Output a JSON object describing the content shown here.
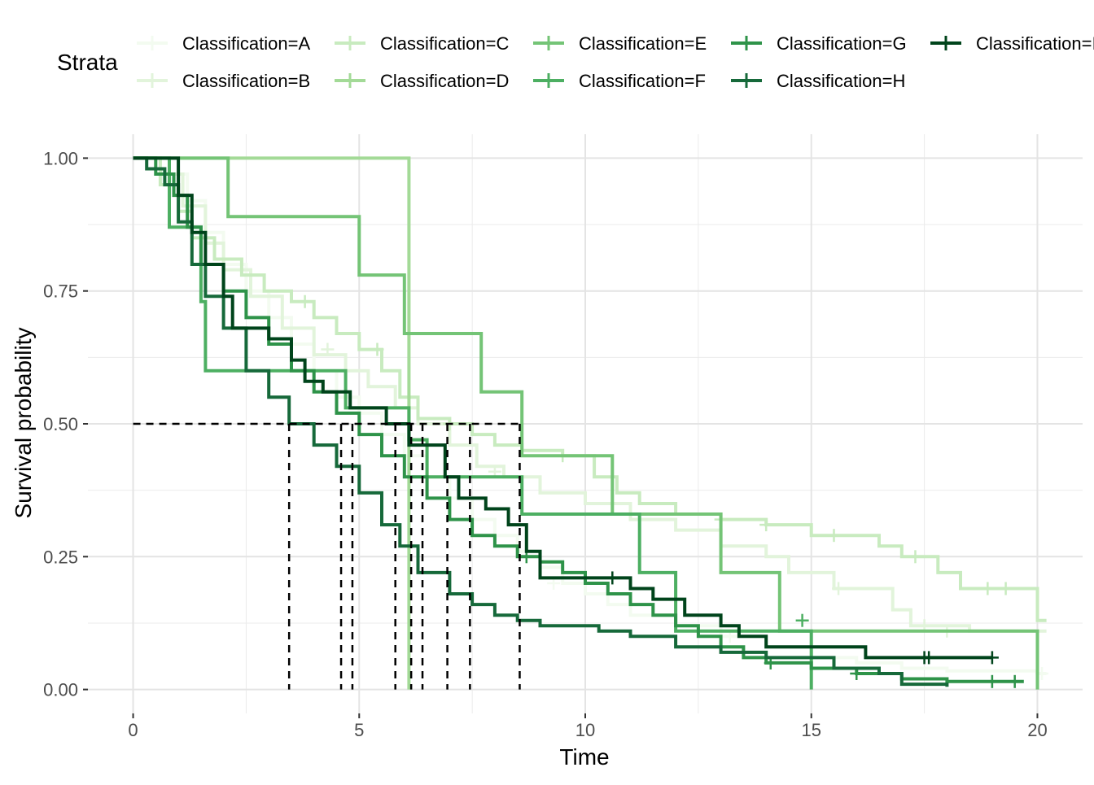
{
  "chart_data": {
    "type": "line",
    "subtype": "kaplan-meier survival curves",
    "xlabel": "Time",
    "ylabel": "Survival probability",
    "xlim": [
      -1,
      21
    ],
    "ylim": [
      -0.045,
      1.045
    ],
    "x_ticks": [
      0,
      5,
      10,
      15,
      20
    ],
    "x_tick_labels": [
      "0",
      "5",
      "10",
      "15",
      "20"
    ],
    "y_ticks": [
      0,
      0.25,
      0.5,
      0.75,
      1
    ],
    "y_tick_labels": [
      "0.00",
      "0.25",
      "0.50",
      "0.75",
      "1.00"
    ],
    "grid": true,
    "legend": {
      "title": "Strata",
      "position": "top"
    },
    "median_line": {
      "y": 0.5,
      "medians": [
        3.45,
        4.6,
        4.85,
        5.8,
        6.15,
        6.4,
        6.95,
        7.45,
        8.55
      ],
      "style": "dashed",
      "color": "#000000"
    },
    "series": [
      {
        "name": "Classification=A",
        "color": "#F3FBF0",
        "steps": [
          [
            0,
            1
          ],
          [
            0.5,
            0.97
          ],
          [
            1.2,
            0.92
          ],
          [
            1.6,
            0.86
          ],
          [
            2.0,
            0.8
          ],
          [
            2.5,
            0.75
          ],
          [
            3.0,
            0.7
          ],
          [
            3.5,
            0.65
          ],
          [
            4.0,
            0.6
          ],
          [
            4.5,
            0.55
          ],
          [
            5.0,
            0.52
          ],
          [
            5.5,
            0.48
          ],
          [
            6.0,
            0.44
          ],
          [
            6.5,
            0.4
          ],
          [
            7.0,
            0.36
          ],
          [
            7.5,
            0.32
          ],
          [
            8.0,
            0.29
          ],
          [
            8.5,
            0.26
          ],
          [
            9.0,
            0.23
          ],
          [
            9.5,
            0.2
          ],
          [
            10.0,
            0.18
          ],
          [
            10.5,
            0.16
          ],
          [
            11.0,
            0.14
          ],
          [
            12.0,
            0.12
          ],
          [
            13.0,
            0.1
          ],
          [
            14.0,
            0.08
          ],
          [
            15.0,
            0.06
          ],
          [
            16.0,
            0.05
          ],
          [
            17.0,
            0.04
          ],
          [
            18.0,
            0.035
          ],
          [
            20.0,
            0.03
          ]
        ],
        "end": 20.2,
        "censors": [
          [
            6.5,
            0.4
          ],
          [
            9.3,
            0.2
          ],
          [
            13.2,
            0.1
          ],
          [
            20.1,
            0.03
          ]
        ]
      },
      {
        "name": "Classification=B",
        "color": "#E2F4DB",
        "steps": [
          [
            0,
            1
          ],
          [
            0.6,
            0.97
          ],
          [
            1.1,
            0.91
          ],
          [
            1.6,
            0.84
          ],
          [
            2.0,
            0.79
          ],
          [
            2.6,
            0.74
          ],
          [
            3.3,
            0.68
          ],
          [
            4.0,
            0.63
          ],
          [
            4.7,
            0.6
          ],
          [
            5.2,
            0.57
          ],
          [
            5.8,
            0.53
          ],
          [
            6.3,
            0.5
          ],
          [
            7.0,
            0.46
          ],
          [
            7.6,
            0.42
          ],
          [
            8.2,
            0.4
          ],
          [
            9.0,
            0.37
          ],
          [
            10.0,
            0.35
          ],
          [
            11.0,
            0.32
          ],
          [
            12.0,
            0.3
          ],
          [
            13.0,
            0.27
          ],
          [
            14.0,
            0.25
          ],
          [
            14.5,
            0.22
          ],
          [
            15.5,
            0.19
          ],
          [
            16.8,
            0.15
          ],
          [
            17.2,
            0.12
          ],
          [
            18.5,
            0.11
          ],
          [
            20,
            0.11
          ]
        ],
        "end": 20.2,
        "censors": [
          [
            4.3,
            0.64
          ],
          [
            8.0,
            0.41
          ],
          [
            15.6,
            0.19
          ],
          [
            17.5,
            0.12
          ],
          [
            18.0,
            0.11
          ]
        ]
      },
      {
        "name": "Classification=C",
        "color": "#C8EBBF",
        "steps": [
          [
            0,
            1
          ],
          [
            0.6,
            0.95
          ],
          [
            1.0,
            0.9
          ],
          [
            1.3,
            0.85
          ],
          [
            1.8,
            0.81
          ],
          [
            2.4,
            0.78
          ],
          [
            2.9,
            0.75
          ],
          [
            3.5,
            0.73
          ],
          [
            4.0,
            0.7
          ],
          [
            4.5,
            0.67
          ],
          [
            5.0,
            0.64
          ],
          [
            5.5,
            0.6
          ],
          [
            5.9,
            0.55
          ],
          [
            6.3,
            0.51
          ],
          [
            7.0,
            0.5
          ],
          [
            7.5,
            0.48
          ],
          [
            8.0,
            0.46
          ],
          [
            8.6,
            0.45
          ],
          [
            9.5,
            0.44
          ],
          [
            10.2,
            0.4
          ],
          [
            10.7,
            0.37
          ],
          [
            11.2,
            0.35
          ],
          [
            12.0,
            0.33
          ],
          [
            13.0,
            0.32
          ],
          [
            14.0,
            0.31
          ],
          [
            15.0,
            0.29
          ],
          [
            16.5,
            0.27
          ],
          [
            17.0,
            0.25
          ],
          [
            17.8,
            0.22
          ],
          [
            18.3,
            0.19
          ],
          [
            19.0,
            0.19
          ],
          [
            20,
            0.13
          ]
        ],
        "end": 20.2,
        "censors": [
          [
            3.8,
            0.73
          ],
          [
            5.4,
            0.64
          ],
          [
            7.0,
            0.5
          ],
          [
            9.5,
            0.44
          ],
          [
            13.0,
            0.32
          ],
          [
            14.0,
            0.31
          ],
          [
            15.5,
            0.29
          ],
          [
            17.3,
            0.25
          ],
          [
            18.9,
            0.19
          ],
          [
            19.3,
            0.19
          ]
        ]
      },
      {
        "name": "Classification=D",
        "color": "#A3DA97",
        "steps": [
          [
            0,
            1
          ],
          [
            6.1,
            0
          ]
        ],
        "end": 6.1,
        "censors": []
      },
      {
        "name": "Classification=E",
        "color": "#74C476",
        "steps": [
          [
            0,
            1
          ],
          [
            2.1,
            0.89
          ],
          [
            5.0,
            0.78
          ],
          [
            6.0,
            0.67
          ],
          [
            7.7,
            0.56
          ],
          [
            8.6,
            0.44
          ],
          [
            10.6,
            0.33
          ],
          [
            13.0,
            0.22
          ],
          [
            14.3,
            0.11
          ],
          [
            20,
            0
          ]
        ],
        "end": 20,
        "censors": []
      },
      {
        "name": "Classification=F",
        "color": "#4DAF62",
        "steps": [
          [
            0,
            1
          ],
          [
            0.8,
            0.87
          ],
          [
            1.5,
            0.73
          ],
          [
            1.6,
            0.6
          ],
          [
            3.9,
            0.6
          ],
          [
            4.7,
            0.53
          ],
          [
            6.1,
            0.47
          ],
          [
            6.5,
            0.4
          ],
          [
            8.6,
            0.33
          ],
          [
            11.2,
            0.22
          ],
          [
            12.0,
            0.11
          ],
          [
            15.0,
            0
          ]
        ],
        "end": 15,
        "censors": [
          [
            14.8,
            0.13
          ]
        ]
      },
      {
        "name": "Classification=G",
        "color": "#2E9349",
        "steps": [
          [
            0,
            1
          ],
          [
            0.5,
            0.97
          ],
          [
            0.9,
            0.93
          ],
          [
            1.2,
            0.87
          ],
          [
            1.5,
            0.8
          ],
          [
            2.0,
            0.75
          ],
          [
            2.5,
            0.7
          ],
          [
            3.0,
            0.65
          ],
          [
            3.5,
            0.6
          ],
          [
            4.0,
            0.56
          ],
          [
            4.5,
            0.52
          ],
          [
            5.0,
            0.48
          ],
          [
            5.5,
            0.44
          ],
          [
            6.0,
            0.4
          ],
          [
            6.5,
            0.36
          ],
          [
            7.0,
            0.32
          ],
          [
            7.5,
            0.29
          ],
          [
            8.0,
            0.27
          ],
          [
            8.5,
            0.25
          ],
          [
            9.0,
            0.24
          ],
          [
            9.5,
            0.22
          ],
          [
            10.0,
            0.2
          ],
          [
            10.5,
            0.18
          ],
          [
            11.0,
            0.16
          ],
          [
            11.5,
            0.14
          ],
          [
            12.0,
            0.12
          ],
          [
            12.5,
            0.1
          ],
          [
            13.0,
            0.08
          ],
          [
            13.5,
            0.06
          ],
          [
            14.0,
            0.05
          ],
          [
            15.0,
            0.04
          ],
          [
            16.0,
            0.03
          ],
          [
            17.0,
            0.02
          ],
          [
            18.0,
            0.015
          ],
          [
            19.7,
            0.015
          ]
        ],
        "end": 19.7,
        "censors": [
          [
            8.7,
            0.25
          ],
          [
            14.1,
            0.05
          ],
          [
            16.0,
            0.03
          ],
          [
            19.0,
            0.015
          ],
          [
            19.5,
            0.015
          ]
        ]
      },
      {
        "name": "Classification=H",
        "color": "#16693A",
        "steps": [
          [
            0,
            1
          ],
          [
            0.3,
            0.98
          ],
          [
            0.7,
            0.95
          ],
          [
            1.0,
            0.88
          ],
          [
            1.3,
            0.8
          ],
          [
            1.6,
            0.74
          ],
          [
            2.0,
            0.68
          ],
          [
            2.5,
            0.6
          ],
          [
            3.0,
            0.55
          ],
          [
            3.45,
            0.5
          ],
          [
            4.0,
            0.46
          ],
          [
            4.5,
            0.42
          ],
          [
            5.0,
            0.37
          ],
          [
            5.5,
            0.31
          ],
          [
            5.9,
            0.27
          ],
          [
            6.3,
            0.22
          ],
          [
            7.0,
            0.18
          ],
          [
            7.5,
            0.16
          ],
          [
            8.0,
            0.14
          ],
          [
            8.5,
            0.13
          ],
          [
            9.0,
            0.12
          ],
          [
            10.3,
            0.11
          ],
          [
            11.0,
            0.1
          ],
          [
            12.0,
            0.08
          ],
          [
            13.0,
            0.07
          ],
          [
            14.0,
            0.06
          ],
          [
            15.5,
            0.04
          ],
          [
            16.5,
            0.03
          ],
          [
            17.0,
            0.01
          ],
          [
            18.0,
            0.005
          ]
        ],
        "end": 18.0,
        "censors": []
      },
      {
        "name": "Classification=I",
        "color": "#00441B",
        "steps": [
          [
            0,
            1
          ],
          [
            1.0,
            0.93
          ],
          [
            1.3,
            0.86
          ],
          [
            1.6,
            0.8
          ],
          [
            2.0,
            0.74
          ],
          [
            2.2,
            0.68
          ],
          [
            3.0,
            0.66
          ],
          [
            3.5,
            0.62
          ],
          [
            3.8,
            0.58
          ],
          [
            4.2,
            0.56
          ],
          [
            4.8,
            0.53
          ],
          [
            5.6,
            0.5
          ],
          [
            6.1,
            0.46
          ],
          [
            6.9,
            0.4
          ],
          [
            7.2,
            0.36
          ],
          [
            7.8,
            0.34
          ],
          [
            8.3,
            0.31
          ],
          [
            8.7,
            0.26
          ],
          [
            9.0,
            0.21
          ],
          [
            11.0,
            0.19
          ],
          [
            11.5,
            0.17
          ],
          [
            12.2,
            0.14
          ],
          [
            13.0,
            0.12
          ],
          [
            13.4,
            0.1
          ],
          [
            14.0,
            0.08
          ],
          [
            16.2,
            0.06
          ],
          [
            19.0,
            0.06
          ]
        ],
        "end": 19.0,
        "censors": [
          [
            10.6,
            0.21
          ],
          [
            17.5,
            0.06
          ],
          [
            17.6,
            0.06
          ],
          [
            19.0,
            0.06
          ]
        ]
      }
    ]
  }
}
